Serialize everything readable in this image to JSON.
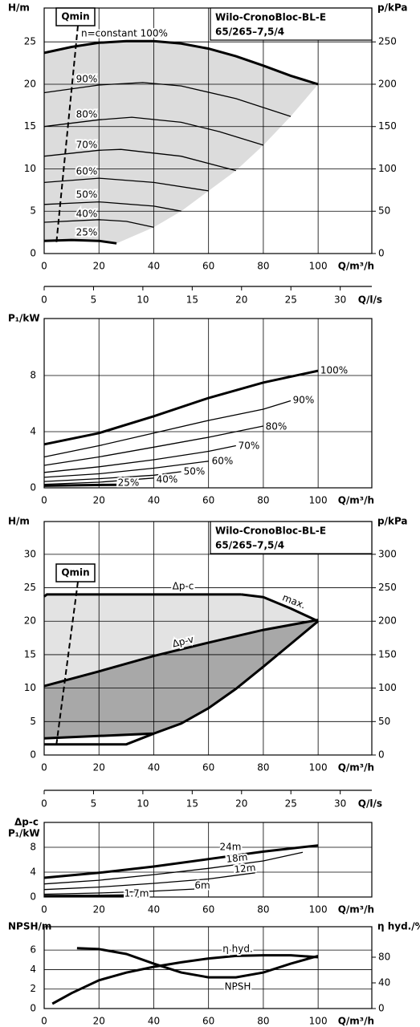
{
  "chart_data": [
    {
      "type": "line",
      "title": "Wilo-CronoBloc-BL-E",
      "subtitle": "65/265–7,5/4",
      "qmin_label": "Qmin",
      "ylabel": "H/m",
      "y2label": "p/kPa",
      "xlabel": "Q/m³/h",
      "x2label": "Q/l/s",
      "xlim": [
        0,
        119.6
      ],
      "xticks": [
        0,
        20,
        40,
        60,
        80,
        100
      ],
      "x2lim": [
        0,
        33.2
      ],
      "x2ticks": [
        0,
        5,
        10,
        15,
        20,
        25,
        30
      ],
      "ylim": [
        0,
        29
      ],
      "yticks": [
        0,
        5,
        10,
        15,
        20,
        25
      ],
      "y2lim": [
        0,
        290
      ],
      "y2ticks": [
        0,
        50,
        100,
        150,
        200,
        250
      ],
      "grid": true,
      "fill": "#dcdcdc",
      "series": [
        {
          "name": "n=constant 100%",
          "color": "#000",
          "bold": true,
          "x": [
            0,
            10,
            20,
            30,
            40,
            50,
            60,
            70,
            80,
            90,
            100
          ],
          "values": [
            23.7,
            24.4,
            24.9,
            25.1,
            25.1,
            24.8,
            24.2,
            23.3,
            22.2,
            21.0,
            20.0
          ]
        },
        {
          "name": "90%",
          "color": "#000",
          "x": [
            0,
            20,
            36,
            50,
            70,
            90
          ],
          "values": [
            19.0,
            19.9,
            20.2,
            19.8,
            18.3,
            16.2
          ]
        },
        {
          "name": "80%",
          "color": "#000",
          "x": [
            0,
            20,
            32,
            50,
            64,
            80
          ],
          "values": [
            15.0,
            15.8,
            16.1,
            15.5,
            14.4,
            12.8
          ]
        },
        {
          "name": "70%",
          "color": "#000",
          "x": [
            0,
            20,
            28,
            50,
            70
          ],
          "values": [
            11.5,
            12.2,
            12.3,
            11.5,
            9.8
          ]
        },
        {
          "name": "60%",
          "color": "#000",
          "x": [
            0,
            20,
            40,
            60
          ],
          "values": [
            8.4,
            8.9,
            8.4,
            7.4
          ]
        },
        {
          "name": "50%",
          "color": "#000",
          "x": [
            0,
            20,
            40,
            50
          ],
          "values": [
            5.8,
            6.1,
            5.6,
            5.0
          ]
        },
        {
          "name": "40%",
          "color": "#000",
          "x": [
            0,
            20,
            30,
            40
          ],
          "values": [
            3.7,
            4.0,
            3.8,
            3.1
          ]
        },
        {
          "name": "25%",
          "color": "#000",
          "bold": true,
          "x": [
            0,
            10,
            20,
            26.4
          ],
          "values": [
            1.5,
            1.6,
            1.5,
            1.2
          ]
        }
      ]
    },
    {
      "type": "line",
      "ylabel": "P₁/kW",
      "xlabel": "Q/m³/h",
      "xlim": [
        0,
        119.6
      ],
      "xticks": [
        0,
        20,
        40,
        60,
        80,
        100
      ],
      "ylim": [
        0,
        12.06
      ],
      "yticks": [
        0,
        4,
        8
      ],
      "grid": true,
      "series": [
        {
          "name": "100%",
          "color": "#000",
          "bold": true,
          "x": [
            0,
            20,
            40,
            60,
            80,
            100
          ],
          "values": [
            3.1,
            3.9,
            5.1,
            6.4,
            7.5,
            8.34
          ]
        },
        {
          "name": "90%",
          "color": "#000",
          "x": [
            0,
            20,
            40,
            60,
            80,
            90
          ],
          "values": [
            2.2,
            3.0,
            3.9,
            4.8,
            5.6,
            6.2
          ]
        },
        {
          "name": "80%",
          "color": "#000",
          "x": [
            0,
            20,
            40,
            60,
            80
          ],
          "values": [
            1.6,
            2.2,
            2.9,
            3.6,
            4.4
          ]
        },
        {
          "name": "70%",
          "color": "#000",
          "x": [
            0,
            20,
            40,
            60,
            70
          ],
          "values": [
            1.1,
            1.5,
            2.0,
            2.6,
            3.0
          ]
        },
        {
          "name": "60%",
          "color": "#000",
          "x": [
            0,
            20,
            40,
            60
          ],
          "values": [
            0.75,
            1.0,
            1.4,
            1.9
          ]
        },
        {
          "name": "50%",
          "color": "#000",
          "x": [
            0,
            20,
            40,
            50
          ],
          "values": [
            0.45,
            0.65,
            0.9,
            1.15
          ]
        },
        {
          "name": "40%",
          "color": "#000",
          "x": [
            0,
            20,
            40
          ],
          "values": [
            0.25,
            0.4,
            0.7
          ]
        },
        {
          "name": "25%",
          "color": "#000",
          "bold": true,
          "x": [
            0,
            10,
            26.4
          ],
          "values": [
            0.15,
            0.18,
            0.22
          ]
        }
      ]
    },
    {
      "type": "line",
      "title": "Wilo-CronoBloc-BL-E",
      "subtitle": "65/265–7,5/4",
      "qmin_label": "Qmin",
      "ylabel": "H/m",
      "y2label": "p/kPa",
      "xlabel": "Q/m³/h",
      "x2label": "Q/l/s",
      "xlim": [
        0,
        119.6
      ],
      "xticks": [
        0,
        20,
        40,
        60,
        80,
        100
      ],
      "x2lim": [
        0,
        33.2
      ],
      "x2ticks": [
        0,
        5,
        10,
        15,
        20,
        25,
        30
      ],
      "ylim": [
        0,
        34.9
      ],
      "yticks": [
        0,
        5,
        10,
        15,
        20,
        25,
        30
      ],
      "y2lim": [
        0,
        349
      ],
      "y2ticks": [
        0,
        50,
        100,
        150,
        200,
        250,
        300
      ],
      "grid": true,
      "fills": [
        "#e3e3e3",
        "#a8a8a8"
      ],
      "series": [
        {
          "name": "Δp-c",
          "color": "#000",
          "bold": true,
          "x": [
            0,
            1,
            72
          ],
          "values": [
            23.7,
            24,
            24
          ]
        },
        {
          "name": "max.",
          "color": "#000",
          "bold": true,
          "x": [
            72,
            80,
            90,
            100
          ],
          "values": [
            24,
            23.6,
            21.9,
            20
          ]
        },
        {
          "name": "Δp-v",
          "color": "#000",
          "bold": true,
          "x": [
            0,
            20,
            40,
            60,
            80,
            100
          ],
          "values": [
            10.3,
            12.5,
            14.8,
            16.8,
            18.7,
            20.2
          ]
        },
        {
          "color": "#000",
          "bold": true,
          "x": [
            0,
            40,
            50,
            60,
            70,
            80,
            90,
            100
          ],
          "values": [
            2.5,
            3.2,
            4.7,
            7.0,
            9.9,
            13.2,
            16.6,
            20
          ]
        },
        {
          "color": "#000",
          "bold": true,
          "x": [
            0,
            30,
            40
          ],
          "values": [
            1.6,
            1.6,
            3.2
          ]
        }
      ]
    },
    {
      "type": "line",
      "ylabel_note": "Δp-c",
      "ylabel": "P₁/kW",
      "xlabel": "Q/m³/h",
      "xlim": [
        0,
        119.6
      ],
      "xticks": [
        0,
        20,
        40,
        60,
        80,
        100
      ],
      "ylim": [
        0,
        12
      ],
      "yticks": [
        0,
        4,
        8
      ],
      "grid": true,
      "series": [
        {
          "name": "24m",
          "color": "#000",
          "bold": true,
          "x": [
            0,
            20,
            40,
            60,
            80,
            100
          ],
          "values": [
            3.1,
            3.9,
            4.9,
            6.1,
            7.3,
            8.3
          ]
        },
        {
          "name": "18m",
          "color": "#000",
          "x": [
            0,
            20,
            40,
            60,
            80,
            94.4
          ],
          "values": [
            2.1,
            2.7,
            3.6,
            4.6,
            5.8,
            7.2
          ]
        },
        {
          "name": "12m",
          "color": "#000",
          "x": [
            0,
            20,
            40,
            60,
            77
          ],
          "values": [
            1.2,
            1.6,
            2.2,
            2.9,
            3.9
          ]
        },
        {
          "name": "6m",
          "color": "#000",
          "x": [
            0,
            20,
            40,
            56
          ],
          "values": [
            0.45,
            0.65,
            0.95,
            1.3
          ]
        },
        {
          "name": "1.7m",
          "color": "#000",
          "bold": true,
          "x": [
            0,
            20,
            30
          ],
          "values": [
            0.15,
            0.2,
            0.25
          ]
        }
      ]
    },
    {
      "type": "line",
      "ylabel": "NPSH/m",
      "y2label": "η hyd./%",
      "xlabel": "Q/m³/h",
      "xlim": [
        0,
        119.6
      ],
      "xticks": [
        0,
        20,
        40,
        60,
        80,
        100
      ],
      "ylim": [
        0,
        8.4
      ],
      "yticks": [
        0,
        2,
        4,
        6
      ],
      "y2lim": [
        0,
        127.5
      ],
      "y2ticks": [
        0,
        40,
        80
      ],
      "grid": true,
      "series": [
        {
          "name": "η hyd.",
          "color": "#000",
          "bold": true,
          "axis": "y2",
          "x": [
            3,
            10,
            20,
            30,
            40,
            50,
            60,
            70,
            80,
            90,
            100
          ],
          "values": [
            7.5,
            24,
            44,
            56,
            65,
            72,
            78,
            82,
            83,
            83,
            80
          ]
        },
        {
          "name": "NPSH",
          "color": "#000",
          "bold": true,
          "x": [
            12,
            20,
            30,
            40,
            50,
            60,
            70,
            80,
            90,
            100
          ],
          "values": [
            6.2,
            6.1,
            5.6,
            4.6,
            3.7,
            3.2,
            3.2,
            3.7,
            4.6,
            5.4
          ]
        }
      ]
    }
  ]
}
